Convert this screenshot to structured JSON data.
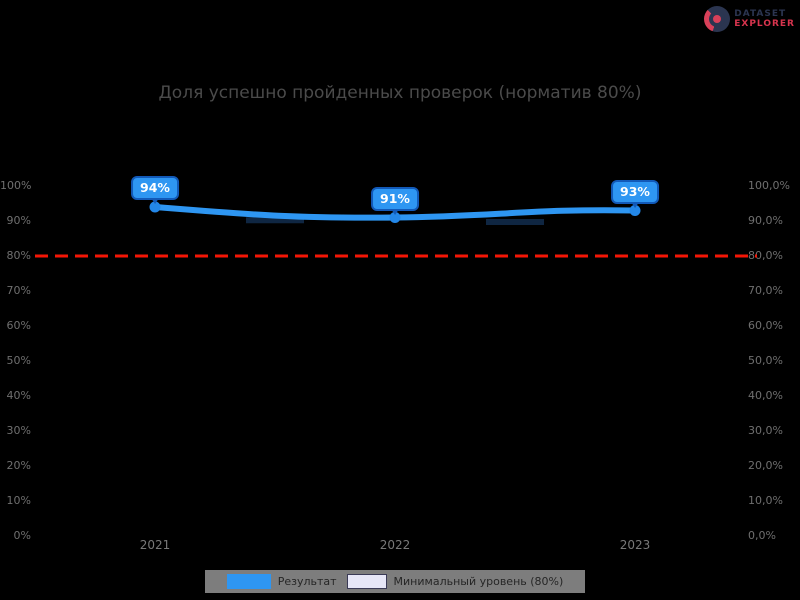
{
  "logo": {
    "line1": "DATASET",
    "line2": "EXPLORER",
    "navy": "#2b3550",
    "red": "#d8344e"
  },
  "chart_data": {
    "type": "line",
    "title": "Доля успешно пройденных проверок (норматив 80%)",
    "categories": [
      "2021",
      "2022",
      "2023"
    ],
    "series": [
      {
        "name": "Результат",
        "color": "#2e96f2",
        "values": [
          94,
          91,
          93
        ]
      }
    ],
    "data_labels": [
      "94%",
      "91%",
      "93%"
    ],
    "target_line": {
      "value": 80,
      "color": "#f41606",
      "style": "dashed"
    },
    "ylim": [
      0,
      100
    ],
    "y_ticks_left": [
      "100%",
      "90%",
      "80%",
      "70%",
      "60%",
      "50%",
      "40%",
      "30%",
      "20%",
      "10%",
      "0%"
    ],
    "y_ticks_right": [
      "100,0%",
      "90,0%",
      "80,0%",
      "70,0%",
      "60,0%",
      "50,0%",
      "40,0%",
      "30,0%",
      "20,0%",
      "10,0%",
      "0,0%"
    ],
    "grid": false,
    "legend_position": "bottom",
    "legend": [
      {
        "label": "Результат",
        "swatch_color": "#2e96f2"
      },
      {
        "label": "Минимальный уровень (80%)",
        "swatch_color": "#e6e6f7"
      }
    ]
  }
}
